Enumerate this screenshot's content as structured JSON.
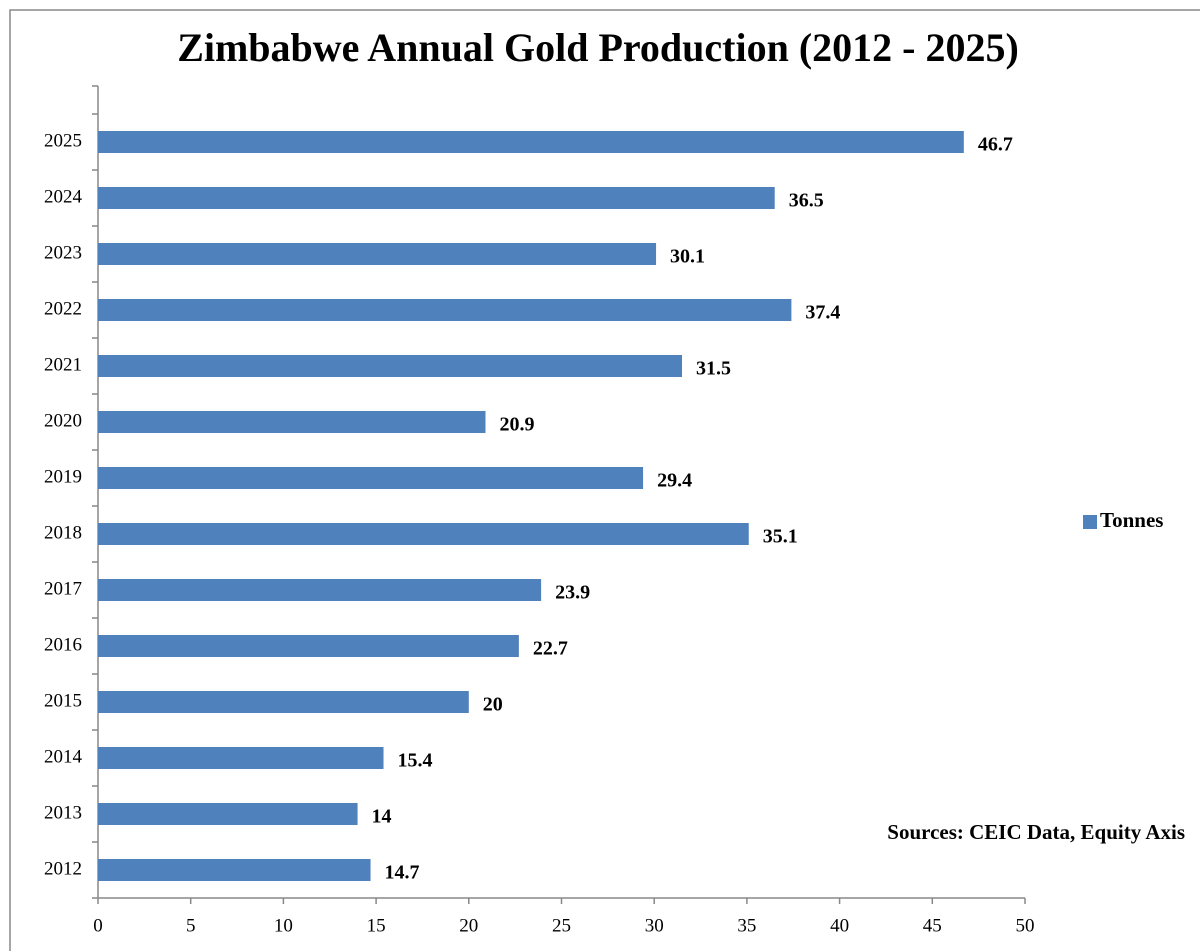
{
  "chart_data": {
    "type": "hbar",
    "title": "Zimbabwe Annual Gold Production (2012 - 2025)",
    "categories": [
      "2012",
      "2013",
      "2014",
      "2015",
      "2016",
      "2017",
      "2018",
      "2019",
      "2020",
      "2021",
      "2022",
      "2023",
      "2024",
      "2025"
    ],
    "series": [
      {
        "name": "Tonnes",
        "color": "#4f81bd",
        "values": [
          14.7,
          14,
          15.4,
          20,
          22.7,
          23.9,
          35.1,
          29.4,
          20.9,
          31.5,
          37.4,
          30.1,
          36.5,
          46.7
        ]
      }
    ],
    "xlim": [
      0,
      50
    ],
    "xticks": [
      0,
      5,
      10,
      15,
      20,
      25,
      30,
      35,
      40,
      45,
      50
    ],
    "legend": "right",
    "annotation": "Sources: CEIC Data, Equity Axis"
  }
}
